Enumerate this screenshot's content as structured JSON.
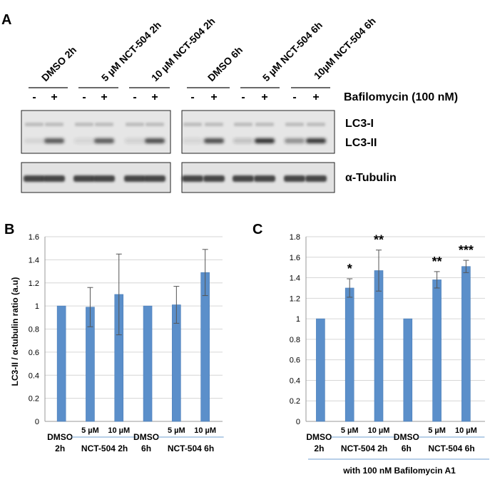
{
  "panel_a": {
    "letter": "A",
    "lane_groups": [
      "DMSO 2h",
      "5 µM NCT-504 2h",
      "10 µM NCT-504 2h",
      "DMSO 6h",
      "5 µM NCT-504 6h",
      "10µM NCT-504 6h"
    ],
    "minus": "-",
    "plus": "+",
    "treatment_label": "Bafilomycin (100 nM)",
    "band_lc3i": "LC3-I",
    "band_lc3ii": "LC3-II",
    "band_tubulin": "α-Tubulin",
    "lc3ii_intensity": [
      0.08,
      0.75,
      0.1,
      0.72,
      0.12,
      0.8,
      0.1,
      0.8,
      0.2,
      0.95,
      0.45,
      0.92
    ]
  },
  "panel_b": {
    "letter": "B"
  },
  "panel_c": {
    "letter": "C",
    "footer": "with 100 nM Bafilomycin A1"
  },
  "chart_data": [
    {
      "type": "bar",
      "panel": "B",
      "ylabel": "LC3-II / α-tubulin ratio (a.u)",
      "ylim": [
        0,
        1.6
      ],
      "yticks": [
        "0",
        "0.2",
        "0.4",
        "0.6",
        "0.8",
        "1",
        "1.2",
        "1.4",
        "1.6"
      ],
      "grid": true,
      "categories": [
        "DMSO 2h",
        "5 µM NCT-504 2h",
        "10 µM NCT-504 2h",
        "DMSO 6h",
        "5 µM NCT-504 6h",
        "10 µM NCT-504 6h"
      ],
      "values": [
        1.0,
        0.99,
        1.1,
        1.0,
        1.01,
        1.29
      ],
      "errors": [
        0,
        0.17,
        0.35,
        0,
        0.16,
        0.2
      ],
      "significance": [
        "",
        "",
        "",
        "",
        "",
        ""
      ],
      "x_labels": {
        "dmso": "DMSO",
        "conc_5": "5 µM",
        "conc_10": "10 µM",
        "time_2h": "2h",
        "time_6h": "6h",
        "group_2h": "NCT-504 2h",
        "group_6h": "NCT-504 6h"
      }
    },
    {
      "type": "bar",
      "panel": "C",
      "ylim": [
        0,
        1.8
      ],
      "yticks": [
        "0",
        "0.2",
        "0.4",
        "0.6",
        "0.8",
        "1",
        "1.2",
        "1.4",
        "1.6",
        "1.8"
      ],
      "grid": true,
      "categories": [
        "DMSO 2h",
        "5 µM NCT-504 2h",
        "10 µM NCT-504 2h",
        "DMSO 6h",
        "5 µM NCT-504 6h",
        "10 µM NCT-504 6h"
      ],
      "values": [
        1.0,
        1.3,
        1.47,
        1.0,
        1.38,
        1.51
      ],
      "errors": [
        0,
        0.09,
        0.2,
        0,
        0.08,
        0.06
      ],
      "significance": [
        "",
        "*",
        "**",
        "",
        "**",
        "***"
      ],
      "x_labels": {
        "dmso": "DMSO",
        "conc_5": "5 µM",
        "conc_10": "10 µM",
        "time_2h": "2h",
        "time_6h": "6h",
        "group_2h": "NCT-504 2h",
        "group_6h": "NCT-504 6h"
      }
    }
  ],
  "colors": {
    "bar": "#5b8fca",
    "bar_edge": "#4a7db8",
    "grid": "#d6d6d6",
    "blot_bg": "#e4e4e4",
    "band": "#2e2e2e"
  }
}
